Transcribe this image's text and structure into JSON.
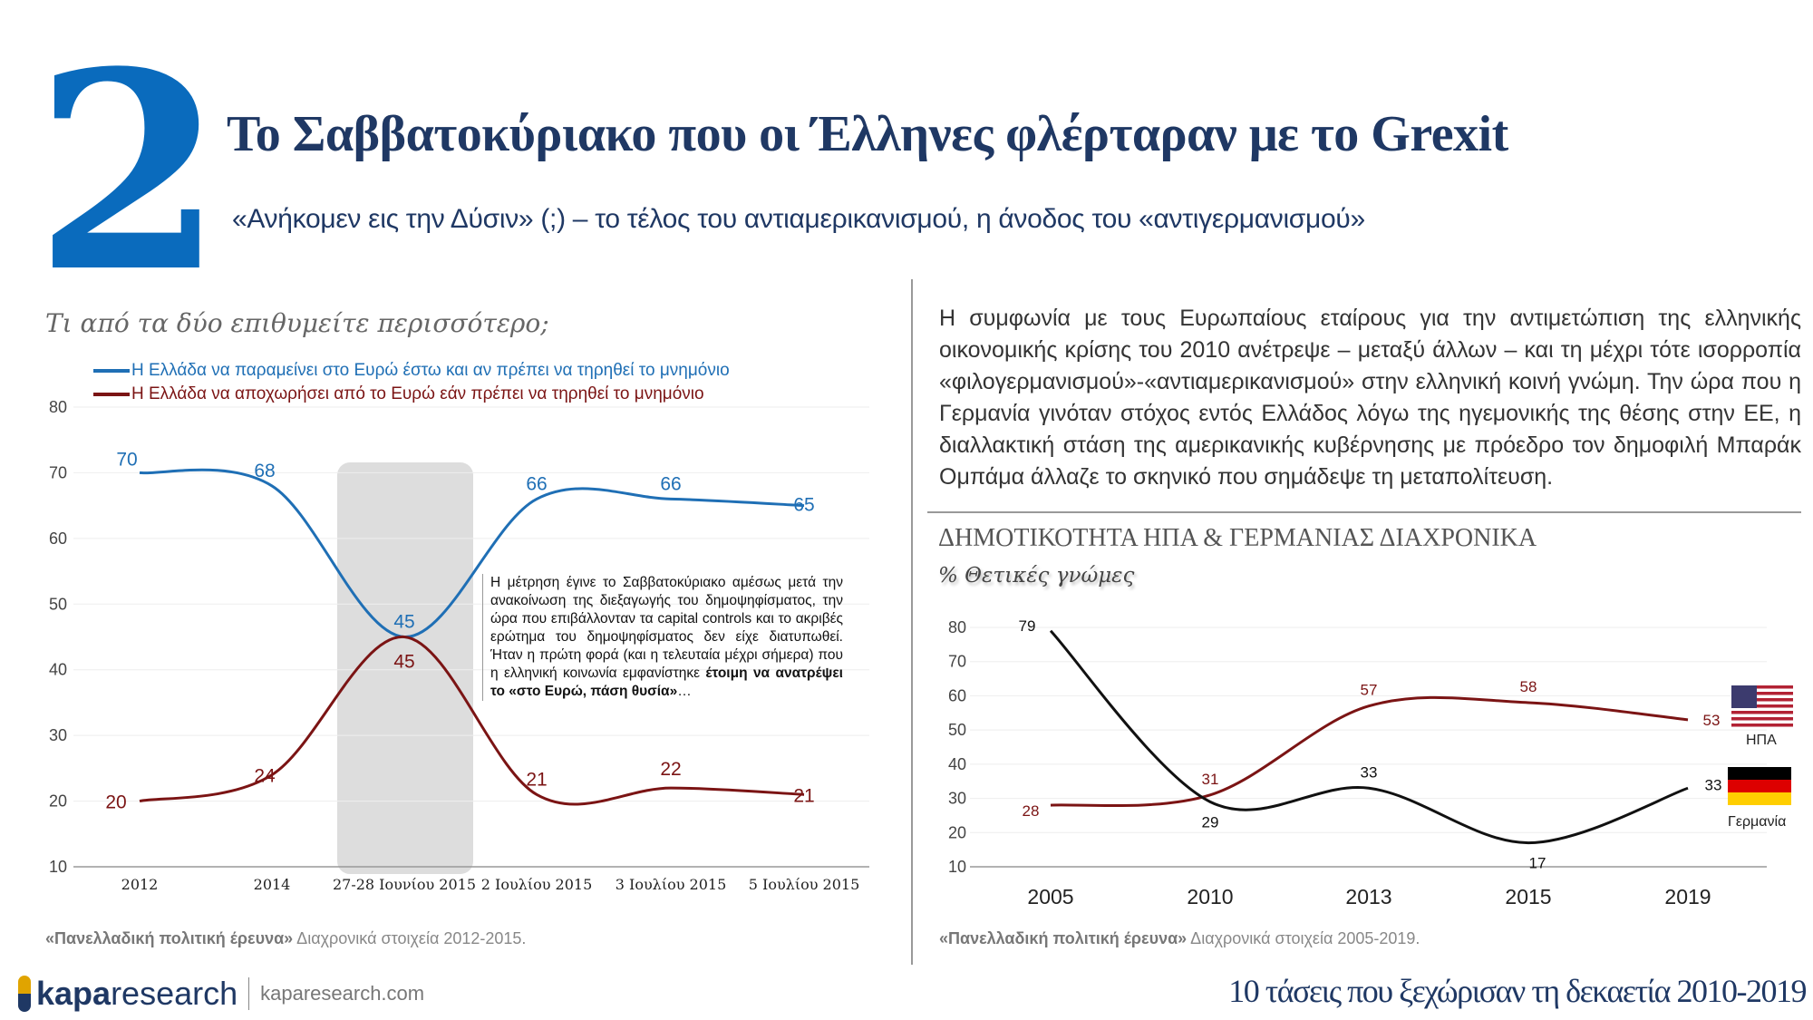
{
  "header": {
    "number": "2",
    "title": "Το Σαββατοκύριακο που οι Έλληνες φλέρταραν με το Grexit",
    "subtitle": "«Ανήκομεν εις την Δύσιν» (;) – το τέλος του αντιαμερικανισμού, η άνοδος του «αντιγερμανισμού»"
  },
  "left": {
    "question": "Τι από τα δύο επιθυμείτε περισσότερο;",
    "note_text": "Η μέτρηση έγινε το Σαββατοκύριακο αμέσως μετά την ανακοίνωση της διεξαγωγής του δημοψηφίσματος, την ώρα που επιβάλλονταν τα capital controls και το ακριβές ερώτημα του δημοψηφίσματος δεν είχε διατυπωθεί. Ήταν η πρώτη φορά (και η τελευταία μέχρι σήμερα) που η ελληνική κοινωνία εμφανίστηκε ",
    "note_bold": "έτοιμη να ανατρέψει το «στο Ευρώ, πάση θυσία»",
    "note_end": "…",
    "source_bold": "«Πανελλαδική πολιτική έρευνα»",
    "source_rest": " Διαχρονικά στοιχεία 2012-2015."
  },
  "right": {
    "paragraph": "Η συμφωνία με τους Ευρωπαίους εταίρους για την αντιμετώπιση της ελληνικής οικονομικής κρίσης του 2010 ανέτρεψε – μεταξύ άλλων – και τη μέχρι τότε ισορροπία «φιλογερμανισμού»-«αντιαμερικανισμού» στην ελληνική κοινή γνώμη. Την ώρα που η Γερμανία γινόταν στόχος εντός Ελλάδος λόγω της ηγεμονικής της θέσης στην ΕΕ, η διαλλακτική στάση της αμερικανικής κυβέρνησης με πρόεδρο τον δημοφιλή Μπαράκ Ομπάμα άλλαζε το σκηνικό που σημάδεψε τη μεταπολίτευση.",
    "source_bold": "«Πανελλαδική πολιτική έρευνα»",
    "source_rest": " Διαχρονικά στοιχεία 2005-2019."
  },
  "footer": {
    "logo_bold": "kapa",
    "logo_rest": "research",
    "url": "kaparesearch.com",
    "tagline": "10 τάσεις που ξεχώρισαν τη δεκαετία 2010-2019"
  },
  "chart_data": [
    {
      "type": "line",
      "categories": [
        "2012",
        "2014",
        "27-28 Ιουνίου 2015",
        "2 Ιουλίου 2015",
        "3 Ιουλίου 2015",
        "5 Ιουλίου 2015"
      ],
      "ylim": [
        10,
        80
      ],
      "yticks": [
        10,
        20,
        30,
        40,
        50,
        60,
        70,
        80
      ],
      "grid": true,
      "legend": "top-left",
      "highlighted_category": "27-28 Ιουνίου 2015",
      "series": [
        {
          "name": "Η Ελλάδα να παραμείνει στο Ευρώ έστω και αν πρέπει να τηρηθεί το μνημόνιο",
          "color": "#1f6fb5",
          "values": [
            70,
            68,
            45,
            66,
            66,
            65
          ]
        },
        {
          "name": "Η Ελλάδα να αποχωρήσει από το Ευρώ εάν πρέπει να τηρηθεί το μνημόνιο",
          "color": "#7b1414",
          "values": [
            20,
            24,
            45,
            21,
            22,
            21
          ]
        }
      ]
    },
    {
      "type": "line",
      "title": "ΔΗΜΟΤΙΚΟΤΗΤΑ ΗΠΑ & ΓΕΡΜΑΝΙΑΣ ΔΙΑΧΡΟΝΙΚΑ",
      "subtitle": "% Θετικές γνώμες",
      "categories": [
        "2005",
        "2010",
        "2013",
        "2015",
        "2019"
      ],
      "ylim": [
        10,
        80
      ],
      "yticks": [
        10,
        20,
        30,
        40,
        50,
        60,
        70,
        80
      ],
      "grid": true,
      "legend": "right (flags)",
      "series": [
        {
          "name": "ΗΠΑ",
          "color": "#7b1414",
          "icon": "us-flag-icon",
          "values": [
            28,
            31,
            57,
            58,
            53
          ]
        },
        {
          "name": "Γερμανία",
          "color": "#111111",
          "icon": "german-flag-icon",
          "values": [
            79,
            29,
            33,
            17,
            33
          ]
        }
      ]
    }
  ]
}
